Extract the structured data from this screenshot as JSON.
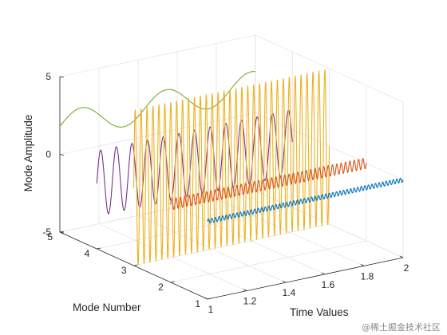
{
  "chart_data": {
    "type": "line",
    "projection": "3d",
    "xlabel": "Time Values",
    "ylabel": "Mode Number",
    "zlabel": "Mode Amplitude",
    "xlim": [
      1,
      2
    ],
    "ylim": [
      1,
      5
    ],
    "zlim": [
      -5,
      5
    ],
    "x_ticks": [
      "1",
      "1.2",
      "1.4",
      "1.6",
      "1.8",
      "2"
    ],
    "y_ticks": [
      "1",
      "2",
      "3",
      "4",
      "5"
    ],
    "z_ticks": [
      "-5",
      "0",
      "5"
    ],
    "grid": true,
    "series": [
      {
        "mode": 1,
        "color": "#0072BD",
        "amplitude": 0.15,
        "frequency": 55,
        "baseline": 0
      },
      {
        "mode": 2,
        "color": "#D95319",
        "amplitude": 0.35,
        "frequency": 45,
        "baseline": 0
      },
      {
        "mode": 3,
        "color": "#EDB120",
        "amplitude": 5,
        "frequency": 33,
        "baseline": 0
      },
      {
        "mode": 4,
        "color": "#7E2F8E",
        "amplitude": 2.1,
        "frequency": 12.5,
        "baseline": -0.8
      },
      {
        "mode": 5,
        "color": "#77AC30",
        "amplitude": 0.9,
        "frequency": 2.3,
        "baseline": 1.8
      }
    ]
  },
  "watermark": "@稀土掘金技术社区"
}
